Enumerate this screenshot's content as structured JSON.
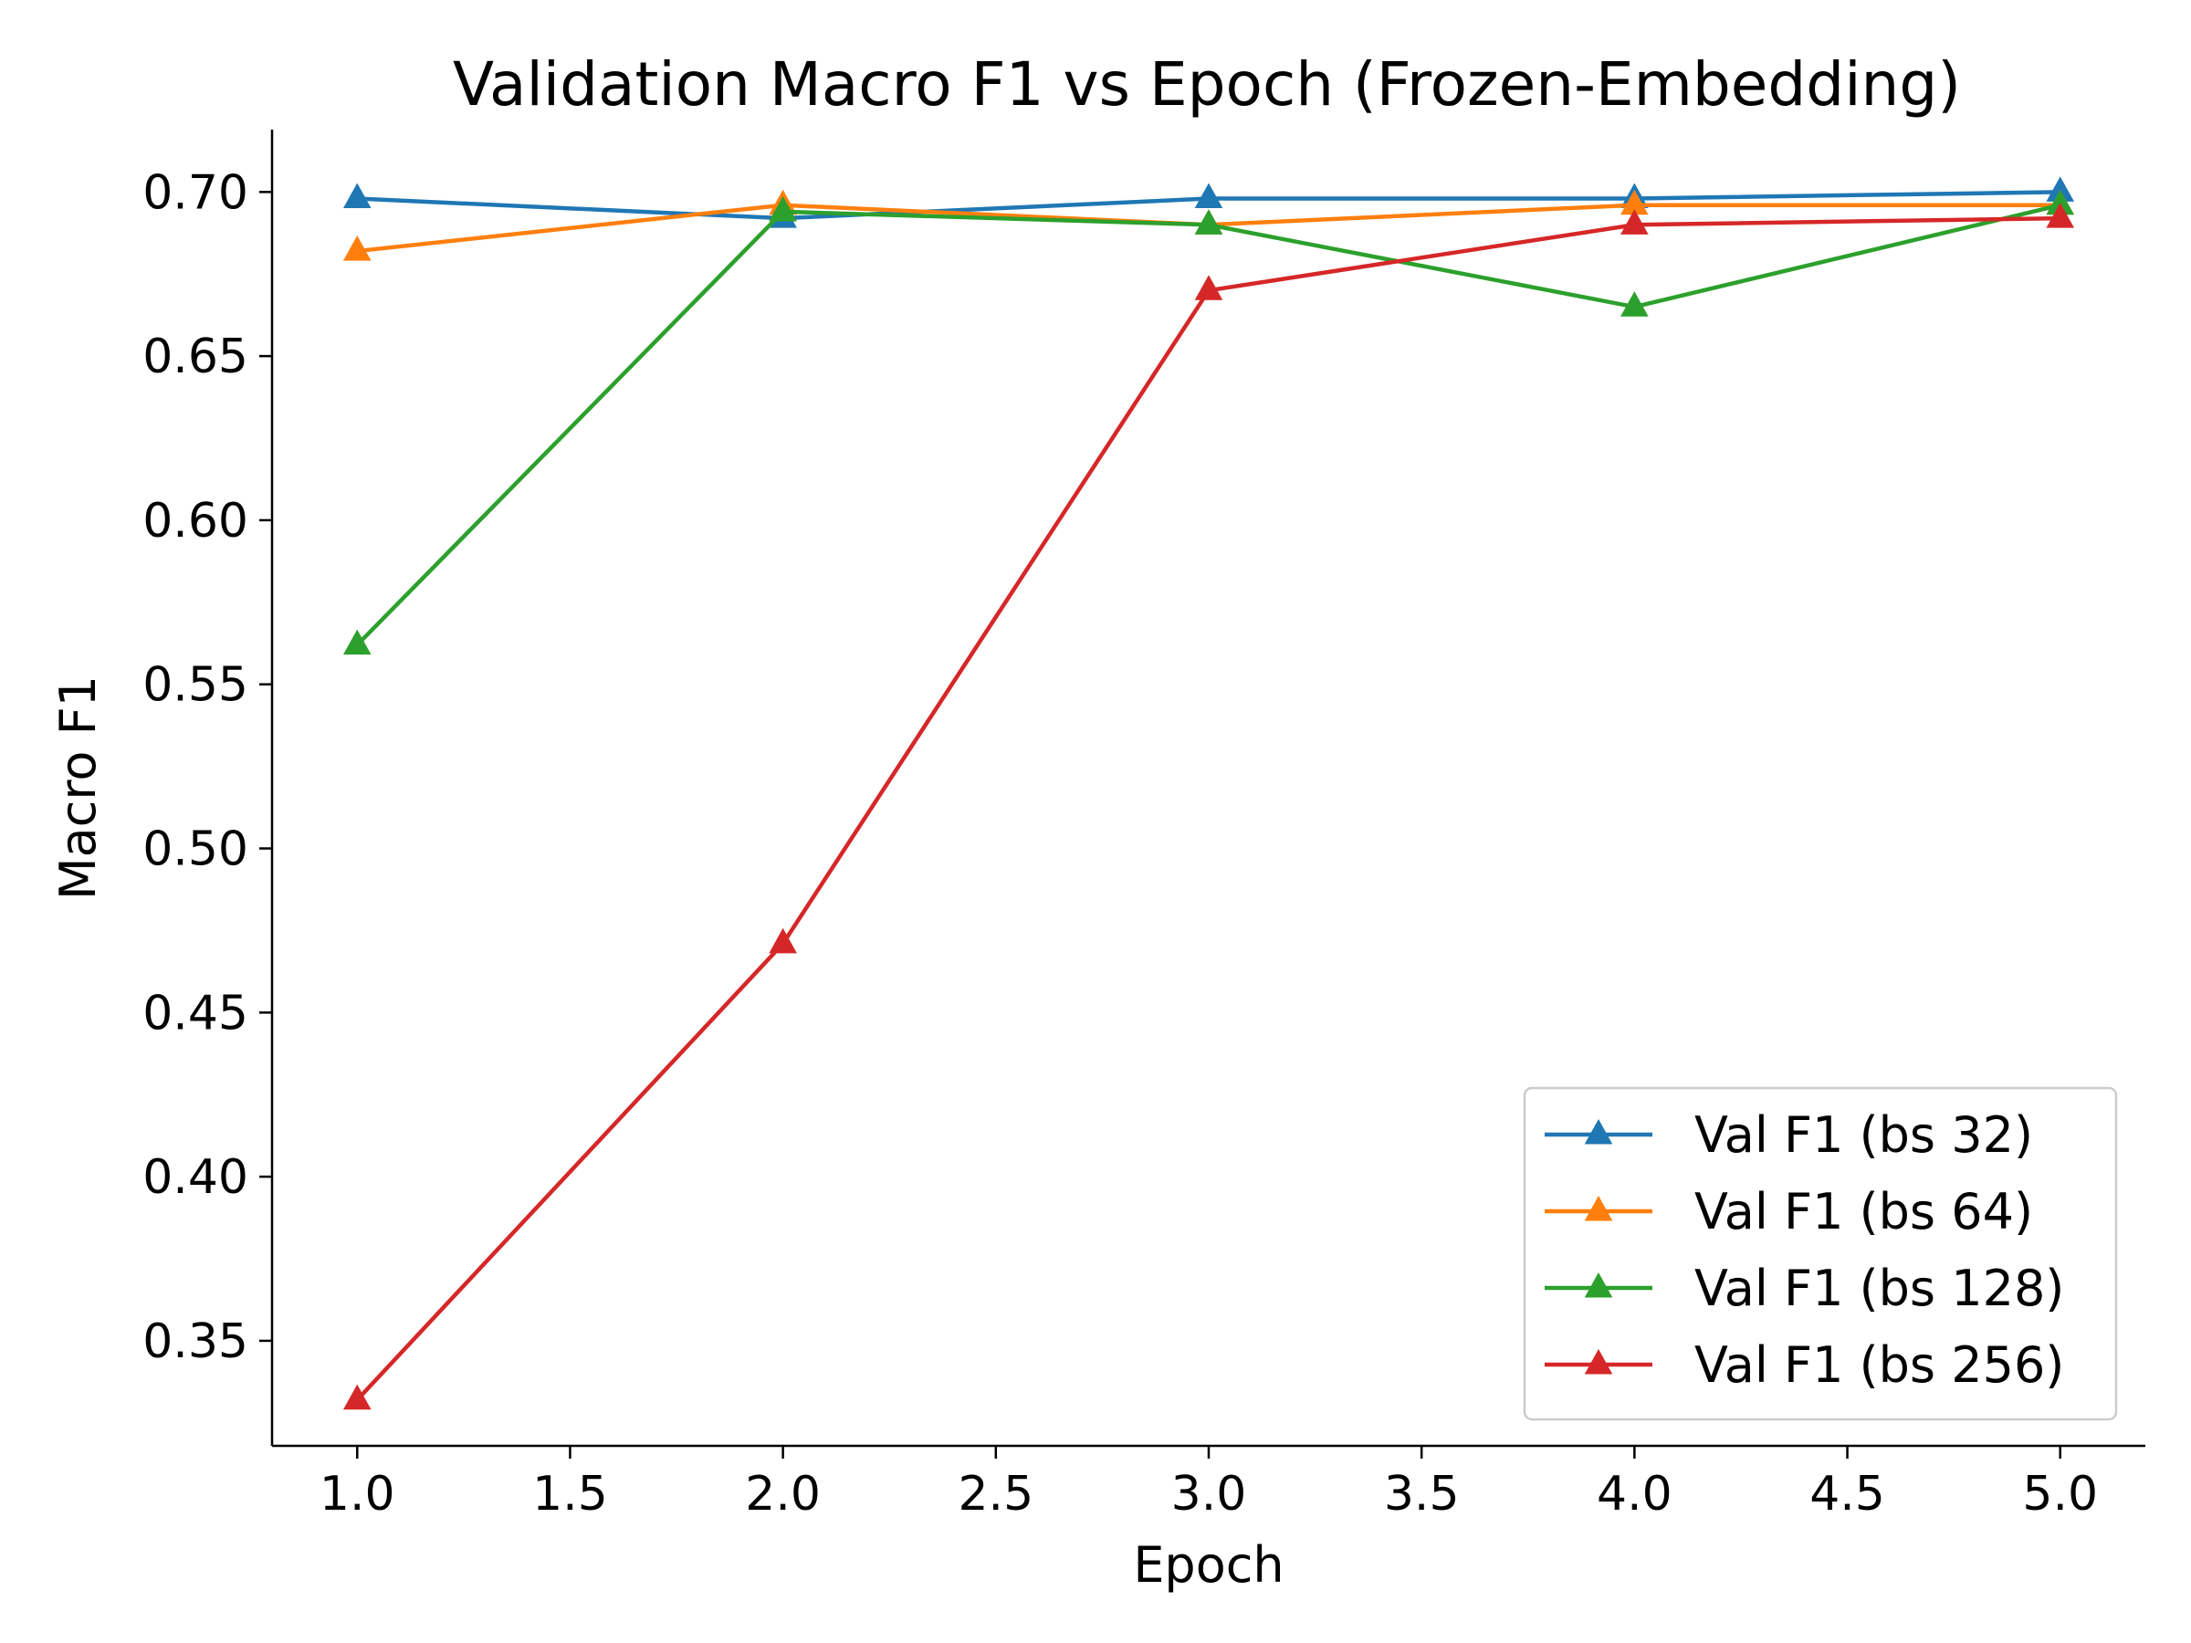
{
  "chart_data": {
    "type": "line",
    "title": "Validation Macro F1 vs Epoch (Frozen-Embedding)",
    "xlabel": "Epoch",
    "ylabel": "Macro F1",
    "x": [
      1,
      2,
      3,
      4,
      5
    ],
    "xlim": [
      0.8,
      5.2
    ],
    "ylim": [
      0.318,
      0.719
    ],
    "xticks": [
      "1.0",
      "1.5",
      "2.0",
      "2.5",
      "3.0",
      "3.5",
      "4.0",
      "4.5",
      "5.0"
    ],
    "yticks": [
      "0.35",
      "0.40",
      "0.45",
      "0.50",
      "0.55",
      "0.60",
      "0.65",
      "0.70"
    ],
    "grid": false,
    "legend_position": "lower-right",
    "marker": "triangle-up",
    "series": [
      {
        "name": "Val F1 (bs 32)",
        "color": "#1f77b4",
        "values": [
          0.698,
          0.692,
          0.698,
          0.698,
          0.7
        ]
      },
      {
        "name": "Val F1 (bs 64)",
        "color": "#ff7f0e",
        "values": [
          0.682,
          0.696,
          0.69,
          0.696,
          0.696
        ]
      },
      {
        "name": "Val F1 (bs 128)",
        "color": "#2ca02c",
        "values": [
          0.562,
          0.694,
          0.69,
          0.665,
          0.696
        ]
      },
      {
        "name": "Val F1 (bs 256)",
        "color": "#d62728",
        "values": [
          0.332,
          0.471,
          0.67,
          0.69,
          0.692
        ]
      }
    ]
  }
}
